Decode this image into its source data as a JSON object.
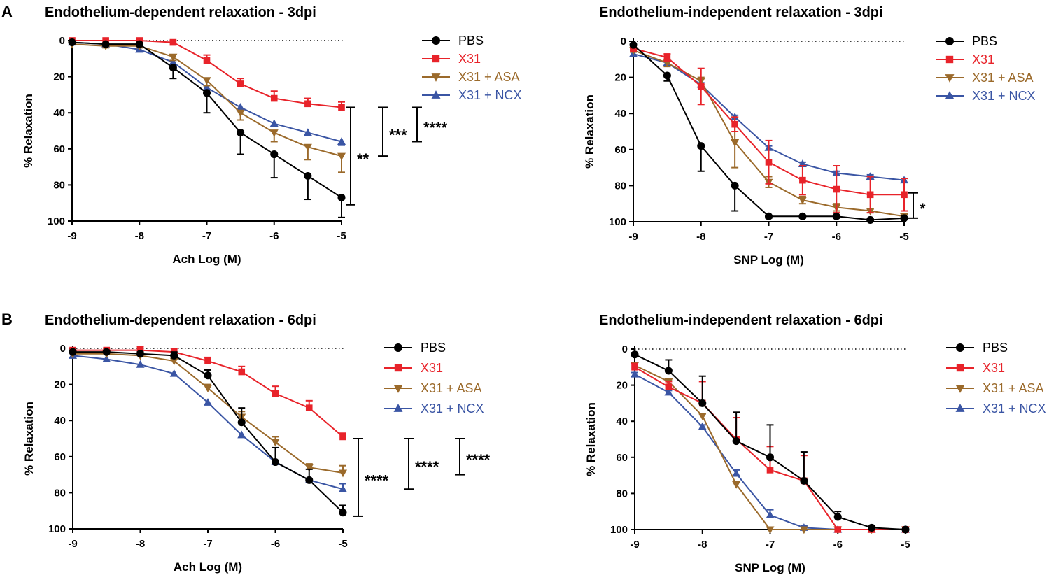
{
  "panels": [
    {
      "letter": "A"
    },
    {
      "letter": "B"
    }
  ],
  "colors": {
    "PBS": "#000000",
    "X31": "#e8232a",
    "X31 + ASA": "#9b6a2b",
    "X31 + NCX": "#3a55a4"
  },
  "chart_data": [
    {
      "type": "line",
      "title": "Endothelium-dependent relaxation - 3dpi",
      "xlabel": "Ach Log (M)",
      "ylabel": "% Relaxation",
      "xlim": [
        -9,
        -5
      ],
      "ylim": [
        0,
        100
      ],
      "y_inverted": true,
      "xticks": [
        -9,
        -8,
        -7,
        -6,
        -5
      ],
      "yticks": [
        0,
        20,
        40,
        60,
        80,
        100
      ],
      "x": [
        -9,
        -8.5,
        -8,
        -7.5,
        -7,
        -6.5,
        -6,
        -5.5,
        -5
      ],
      "series": [
        {
          "name": "PBS",
          "marker": "circle",
          "values": [
            1,
            2,
            2,
            15,
            29,
            51,
            63,
            75,
            87
          ],
          "errors": [
            0,
            1,
            1,
            6,
            11,
            12,
            13,
            13,
            11
          ],
          "error_dir": "down"
        },
        {
          "name": "X31",
          "marker": "square",
          "values": [
            0,
            0,
            0,
            1,
            11,
            24,
            32,
            35,
            37
          ],
          "errors": [
            0,
            0,
            0,
            1,
            3,
            3,
            4,
            3,
            3
          ],
          "error_dir": "up"
        },
        {
          "name": "X31 + ASA",
          "marker": "triangle-down",
          "values": [
            2,
            3,
            3,
            9,
            22,
            40,
            51,
            59,
            64
          ],
          "errors": [
            0,
            1,
            1,
            2,
            3,
            4,
            5,
            7,
            9
          ],
          "error_dir": "down"
        },
        {
          "name": "X31 + NCX",
          "marker": "triangle-up",
          "values": [
            1,
            2,
            5,
            12,
            26,
            37,
            46,
            51,
            56
          ],
          "errors": [
            0,
            0,
            0,
            0,
            0,
            0,
            0,
            0,
            2
          ],
          "error_dir": "down"
        }
      ],
      "legend": [
        "PBS",
        "X31",
        "X31 + ASA",
        "X31 + NCX"
      ],
      "reference_line": 0,
      "significance": [
        {
          "label": "**",
          "y_range": [
            37,
            91
          ]
        },
        {
          "label": "***",
          "y_range": [
            37,
            64
          ]
        },
        {
          "label": "****",
          "y_range": [
            37,
            56
          ]
        }
      ]
    },
    {
      "type": "line",
      "title": "Endothelium-independent relaxation - 3dpi",
      "xlabel": "SNP Log (M)",
      "ylabel": "% Relaxation",
      "xlim": [
        -9,
        -5
      ],
      "ylim": [
        0,
        100
      ],
      "y_inverted": true,
      "xticks": [
        -9,
        -8,
        -7,
        -6,
        -5
      ],
      "yticks": [
        0,
        20,
        40,
        60,
        80,
        100
      ],
      "x": [
        -9,
        -8.5,
        -8,
        -7.5,
        -7,
        -6.5,
        -6,
        -5.5,
        -5
      ],
      "series": [
        {
          "name": "PBS",
          "marker": "circle",
          "values": [
            2,
            19,
            58,
            80,
            97,
            97,
            97,
            99,
            98
          ],
          "errors": [
            0,
            3,
            14,
            14,
            1,
            1,
            1,
            0,
            0
          ],
          "error_dir": "down"
        },
        {
          "name": "X31",
          "marker": "square",
          "values": [
            4,
            9,
            25,
            46,
            67,
            77,
            82,
            85,
            85
          ],
          "errors": [
            1,
            2,
            10,
            4,
            12,
            8,
            13,
            10,
            9
          ],
          "error_dir": "both"
        },
        {
          "name": "X31 + ASA",
          "marker": "triangle-down",
          "values": [
            5,
            12,
            22,
            56,
            78,
            88,
            92,
            94,
            97
          ],
          "errors": [
            1,
            2,
            2,
            14,
            3,
            2,
            2,
            1,
            1
          ],
          "error_dir": "both"
        },
        {
          "name": "X31 + NCX",
          "marker": "triangle-up",
          "values": [
            7,
            12,
            24,
            42,
            59,
            68,
            73,
            75,
            77
          ],
          "errors": [
            1,
            1,
            1,
            1,
            1,
            1,
            1,
            1,
            1
          ],
          "error_dir": "up"
        }
      ],
      "legend": [
        "PBS",
        "X31",
        "X31 + ASA",
        "X31 + NCX"
      ],
      "reference_line": 0,
      "significance": [
        {
          "label": "*",
          "y_range": [
            84,
            98
          ]
        }
      ]
    },
    {
      "type": "line",
      "title": "Endothelium-dependent relaxation - 6dpi",
      "xlabel": "Ach Log (M)",
      "ylabel": "% Relaxation",
      "xlim": [
        -9,
        -5
      ],
      "ylim": [
        0,
        100
      ],
      "y_inverted": true,
      "xticks": [
        -9,
        -8,
        -7,
        -6,
        -5
      ],
      "yticks": [
        0,
        20,
        40,
        60,
        80,
        100
      ],
      "x": [
        -9,
        -8.5,
        -8,
        -7.5,
        -7,
        -6.5,
        -6,
        -5.5,
        -5
      ],
      "series": [
        {
          "name": "PBS",
          "marker": "circle",
          "values": [
            2,
            2,
            3,
            4,
            15,
            41,
            63,
            73,
            91
          ],
          "errors": [
            1,
            1,
            1,
            2,
            3,
            8,
            8,
            6,
            4
          ],
          "error_dir": "up"
        },
        {
          "name": "X31",
          "marker": "square",
          "values": [
            1,
            1,
            1,
            2,
            7,
            13,
            25,
            33,
            49
          ],
          "errors": [
            0,
            1,
            2,
            2,
            2,
            3,
            4,
            4,
            2
          ],
          "error_dir": "up"
        },
        {
          "name": "X31 + ASA",
          "marker": "triangle-down",
          "values": [
            3,
            3,
            4,
            7,
            22,
            38,
            52,
            66,
            69
          ],
          "errors": [
            0,
            0,
            0,
            1,
            2,
            3,
            3,
            2,
            4
          ],
          "error_dir": "up"
        },
        {
          "name": "X31 + NCX",
          "marker": "triangle-up",
          "values": [
            4,
            6,
            9,
            14,
            30,
            48,
            63,
            73,
            78
          ],
          "errors": [
            0,
            0,
            0,
            0,
            0,
            0,
            0,
            0,
            3
          ],
          "error_dir": "up"
        }
      ],
      "legend": [
        "PBS",
        "X31",
        "X31 + ASA",
        "X31 + NCX"
      ],
      "reference_line": 0,
      "significance": [
        {
          "label": "****",
          "y_range": [
            50,
            93
          ]
        },
        {
          "label": "****",
          "y_range": [
            50,
            78
          ]
        },
        {
          "label": "****",
          "y_range": [
            50,
            70
          ]
        }
      ]
    },
    {
      "type": "line",
      "title": "Endothelium-independent relaxation - 6dpi",
      "xlabel": "SNP Log (M)",
      "ylabel": "% Relaxation",
      "xlim": [
        -9,
        -5
      ],
      "ylim": [
        0,
        100
      ],
      "y_inverted": true,
      "xticks": [
        -9,
        -8,
        -7,
        -6,
        -5
      ],
      "yticks": [
        0,
        20,
        40,
        60,
        80,
        100
      ],
      "x": [
        -9,
        -8.5,
        -8,
        -7.5,
        -7,
        -6.5,
        -6,
        -5.5,
        -5
      ],
      "series": [
        {
          "name": "PBS",
          "marker": "circle",
          "values": [
            3,
            12,
            30,
            51,
            60,
            73,
            93,
            99,
            100
          ],
          "errors": [
            1,
            6,
            15,
            16,
            18,
            16,
            3,
            0,
            0
          ],
          "error_dir": "up"
        },
        {
          "name": "X31",
          "marker": "square",
          "values": [
            10,
            21,
            30,
            50,
            67,
            73,
            100,
            100,
            100
          ],
          "errors": [
            2,
            3,
            12,
            12,
            13,
            14,
            0,
            0,
            0
          ],
          "error_dir": "up"
        },
        {
          "name": "X31 + ASA",
          "marker": "triangle-down",
          "values": [
            9,
            18,
            37,
            75,
            100,
            100,
            100,
            100,
            100
          ],
          "errors": [
            1,
            1,
            1,
            1,
            0,
            0,
            0,
            0,
            0
          ],
          "error_dir": "up"
        },
        {
          "name": "X31 + NCX",
          "marker": "triangle-up",
          "values": [
            14,
            24,
            43,
            69,
            92,
            99,
            100,
            100,
            100
          ],
          "errors": [
            1,
            1,
            1,
            2,
            3,
            1,
            0,
            0,
            0
          ],
          "error_dir": "up"
        }
      ],
      "legend": [
        "PBS",
        "X31",
        "X31 + ASA",
        "X31 + NCX"
      ],
      "reference_line": 0,
      "significance": []
    }
  ]
}
